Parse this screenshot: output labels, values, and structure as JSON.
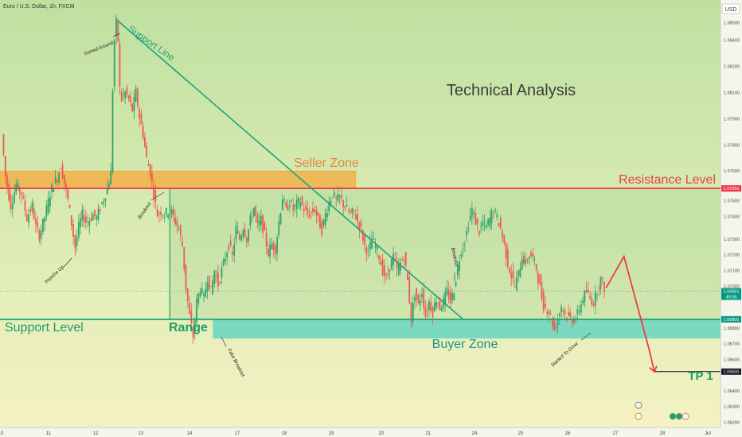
{
  "header": {
    "symbol": "Euro / U.S. Dollar, 1h, FXCM",
    "currency": "USD"
  },
  "chart_data": {
    "type": "candlestick",
    "title": "Technical Analysis",
    "symbol": "Euro / U.S. Dollar, 1h, FXCM",
    "x_ticks": [
      "10",
      "11",
      "12",
      "13",
      "14",
      "17",
      "18",
      "19",
      "20",
      "21",
      "24",
      "25",
      "26",
      "27",
      "28",
      "Jul"
    ],
    "y_ticks": [
      "1.08500",
      "1.08400",
      "1.08200",
      "1.08100",
      "1.07900",
      "1.07800",
      "1.07600",
      "1.07500",
      "1.07400",
      "1.07300",
      "1.07200",
      "1.07100",
      "1.07000",
      "1.06800",
      "1.06700",
      "1.06600",
      "1.06400",
      "1.06300",
      "1.06200"
    ],
    "ylim": [
      1.0618,
      1.0863
    ],
    "price_tags": [
      {
        "label": "1.07550",
        "value": 1.0755,
        "color": "#f23645"
      },
      {
        "label": "1.06961",
        "value": 1.06961,
        "sub": "49:36",
        "color": "#089981"
      },
      {
        "label": "1.06800",
        "value": 1.068,
        "color": "#089981"
      },
      {
        "label": "1.06500",
        "value": 1.065,
        "color": "#131722"
      }
    ],
    "levels": [
      {
        "name": "Resistance Level",
        "value": 1.0755,
        "color": "#f23645"
      },
      {
        "name": "Support Level",
        "value": 1.068,
        "color": "#1aa36f"
      }
    ],
    "zones": [
      {
        "name": "Seller Zone",
        "from_x": "9",
        "to_x": "19.5",
        "low": 1.0755,
        "high": 1.0765,
        "color": "#f2b14a"
      },
      {
        "name": "Buyer Zone",
        "from_x": "15",
        "to_x": "28+",
        "low": 1.0669,
        "high": 1.068,
        "color": "#5fd3c2"
      }
    ],
    "annotations": [
      "Support Line",
      "Seller Zone",
      "Resistance Level",
      "Support Level",
      "Range",
      "Buyer Zone",
      "TP 1",
      "Turned Around",
      "Impulse Up",
      "Breakout",
      "Fake Breakout",
      "Breakout",
      "Started To Grow"
    ],
    "target": {
      "label": "TP 1",
      "value": 1.065
    },
    "path_points": [
      [
        1,
        1.0786
      ],
      [
        3,
        1.0762
      ],
      [
        6,
        1.0745
      ],
      [
        9,
        1.0757
      ],
      [
        12,
        1.0752
      ],
      [
        15,
        1.0738
      ],
      [
        18,
        1.0745
      ],
      [
        20,
        1.0733
      ],
      [
        22,
        1.0728
      ],
      [
        24,
        1.0735
      ],
      [
        26,
        1.0743
      ],
      [
        28,
        1.0752
      ],
      [
        30,
        1.0758
      ],
      [
        32,
        1.0761
      ],
      [
        34,
        1.0768
      ],
      [
        36,
        1.0758
      ],
      [
        38,
        1.0748
      ],
      [
        40,
        1.0735
      ],
      [
        42,
        1.0721
      ],
      [
        44,
        1.0733
      ],
      [
        46,
        1.074
      ],
      [
        48,
        1.0736
      ],
      [
        50,
        1.0737
      ],
      [
        52,
        1.074
      ],
      [
        54,
        1.0738
      ],
      [
        56,
        1.0744
      ],
      [
        58,
        1.0749
      ],
      [
        60,
        1.0755
      ],
      [
        62,
        1.0764
      ],
      [
        63,
        1.0812
      ],
      [
        64,
        1.084
      ],
      [
        65,
        1.085
      ],
      [
        66,
        1.084
      ],
      [
        67,
        1.0812
      ],
      [
        68,
        1.0806
      ],
      [
        70,
        1.081
      ],
      [
        72,
        1.0806
      ],
      [
        74,
        1.08
      ],
      [
        76,
        1.081
      ],
      [
        78,
        1.0796
      ],
      [
        80,
        1.0786
      ],
      [
        82,
        1.0772
      ],
      [
        84,
        1.0764
      ],
      [
        86,
        1.0752
      ],
      [
        88,
        1.074
      ],
      [
        90,
        1.0742
      ],
      [
        92,
        1.074
      ],
      [
        94,
        1.0742
      ],
      [
        96,
        1.0741
      ],
      [
        98,
        1.0736
      ],
      [
        100,
        1.0732
      ],
      [
        102,
        1.0722
      ],
      [
        104,
        1.0698
      ],
      [
        106,
        1.0682
      ],
      [
        108,
        1.067
      ],
      [
        110,
        1.069
      ],
      [
        112,
        1.0698
      ],
      [
        114,
        1.0692
      ],
      [
        116,
        1.0704
      ],
      [
        118,
        1.0696
      ],
      [
        120,
        1.0708
      ],
      [
        122,
        1.07
      ],
      [
        124,
        1.0708
      ],
      [
        126,
        1.0716
      ],
      [
        128,
        1.0723
      ],
      [
        130,
        1.0716
      ],
      [
        132,
        1.0732
      ],
      [
        134,
        1.0726
      ],
      [
        136,
        1.0733
      ],
      [
        138,
        1.0726
      ],
      [
        140,
        1.0737
      ],
      [
        142,
        1.0744
      ],
      [
        144,
        1.0733
      ],
      [
        146,
        1.0737
      ],
      [
        148,
        1.0728
      ],
      [
        150,
        1.0718
      ],
      [
        152,
        1.0723
      ],
      [
        154,
        1.072
      ],
      [
        156,
        1.0736
      ],
      [
        158,
        1.075
      ],
      [
        160,
        1.0742
      ],
      [
        162,
        1.0748
      ],
      [
        164,
        1.0743
      ],
      [
        166,
        1.0746
      ],
      [
        168,
        1.0748
      ],
      [
        170,
        1.0743
      ],
      [
        172,
        1.074
      ],
      [
        174,
        1.0741
      ],
      [
        176,
        1.0743
      ],
      [
        178,
        1.0737
      ],
      [
        180,
        1.0731
      ],
      [
        182,
        1.074
      ],
      [
        184,
        1.0747
      ],
      [
        186,
        1.0752
      ],
      [
        188,
        1.0748
      ],
      [
        190,
        1.075
      ],
      [
        192,
        1.0746
      ],
      [
        194,
        1.0743
      ],
      [
        196,
        1.074
      ],
      [
        198,
        1.0742
      ],
      [
        200,
        1.0736
      ],
      [
        202,
        1.0731
      ],
      [
        204,
        1.0722
      ],
      [
        206,
        1.0718
      ],
      [
        208,
        1.0726
      ],
      [
        210,
        1.0722
      ],
      [
        212,
        1.0716
      ],
      [
        214,
        1.0708
      ],
      [
        216,
        1.0703
      ],
      [
        218,
        1.071
      ],
      [
        220,
        1.0716
      ],
      [
        222,
        1.0708
      ],
      [
        224,
        1.0712
      ],
      [
        226,
        1.0716
      ],
      [
        228,
        1.0702
      ],
      [
        230,
        1.068
      ],
      [
        232,
        1.0695
      ],
      [
        234,
        1.0688
      ],
      [
        236,
        1.0696
      ],
      [
        238,
        1.0682
      ],
      [
        240,
        1.069
      ],
      [
        242,
        1.0684
      ],
      [
        244,
        1.0692
      ],
      [
        246,
        1.0687
      ],
      [
        248,
        1.069
      ],
      [
        250,
        1.0696
      ],
      [
        252,
        1.069
      ],
      [
        254,
        1.0697
      ],
      [
        256,
        1.071
      ],
      [
        258,
        1.072
      ],
      [
        260,
        1.0725
      ],
      [
        262,
        1.0735
      ],
      [
        264,
        1.0743
      ],
      [
        266,
        1.0736
      ],
      [
        268,
        1.073
      ],
      [
        270,
        1.0735
      ],
      [
        272,
        1.0733
      ],
      [
        274,
        1.0738
      ],
      [
        276,
        1.0743
      ],
      [
        278,
        1.0738
      ],
      [
        280,
        1.0732
      ],
      [
        282,
        1.0723
      ],
      [
        284,
        1.0712
      ],
      [
        286,
        1.0705
      ],
      [
        288,
        1.0699
      ],
      [
        290,
        1.0706
      ],
      [
        292,
        1.0716
      ],
      [
        294,
        1.0712
      ],
      [
        296,
        1.0717
      ],
      [
        298,
        1.0715
      ],
      [
        300,
        1.0709
      ],
      [
        302,
        1.0698
      ],
      [
        304,
        1.0688
      ],
      [
        306,
        1.0686
      ],
      [
        308,
        1.0682
      ],
      [
        310,
        1.0674
      ],
      [
        312,
        1.068
      ],
      [
        314,
        1.0688
      ],
      [
        316,
        1.0683
      ],
      [
        318,
        1.0681
      ],
      [
        320,
        1.068
      ],
      [
        322,
        1.068
      ],
      [
        324,
        1.0686
      ],
      [
        326,
        1.0692
      ],
      [
        328,
        1.0696
      ],
      [
        330,
        1.0692
      ],
      [
        332,
        1.069
      ],
      [
        334,
        1.0697
      ],
      [
        336,
        1.0703
      ],
      [
        338,
        1.0698
      ]
    ],
    "projection": [
      [
        338,
        1.0698
      ],
      [
        348,
        1.0716
      ],
      [
        362,
        1.0663
      ],
      [
        365,
        1.065
      ]
    ],
    "support_line": {
      "from": [
        65,
        1.0851
      ],
      "to": [
        258,
        1.068
      ]
    },
    "grid": false,
    "legend": "none"
  }
}
